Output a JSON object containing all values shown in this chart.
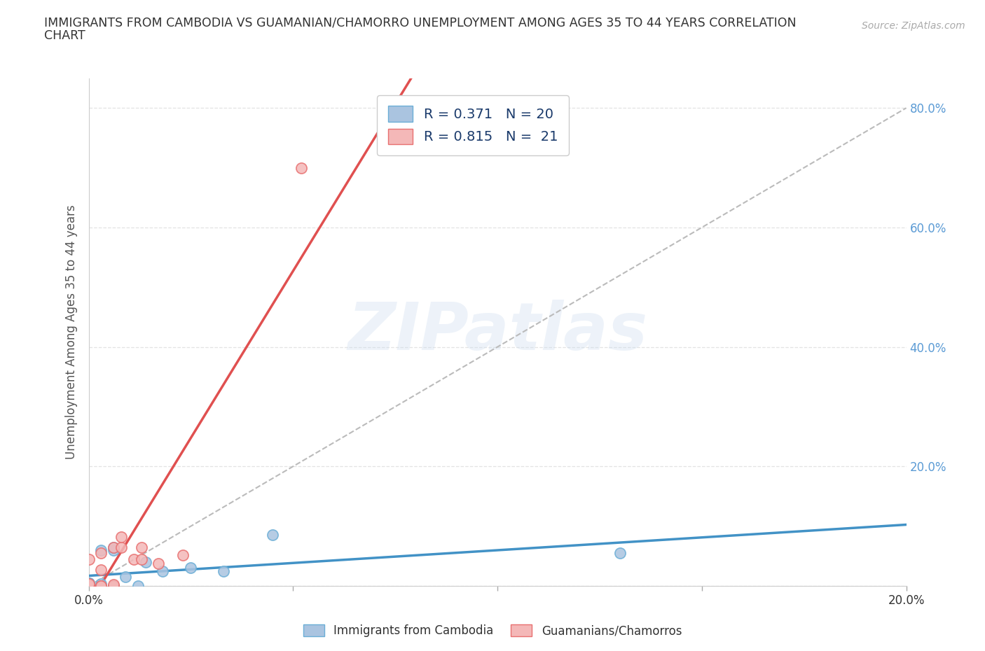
{
  "title_line1": "IMMIGRANTS FROM CAMBODIA VS GUAMANIAN/CHAMORRO UNEMPLOYMENT AMONG AGES 35 TO 44 YEARS CORRELATION",
  "title_line2": "CHART",
  "source": "Source: ZipAtlas.com",
  "ylabel": "Unemployment Among Ages 35 to 44 years",
  "xlim": [
    0.0,
    0.2
  ],
  "ylim": [
    0.0,
    0.85
  ],
  "xticks": [
    0.0,
    0.05,
    0.1,
    0.15,
    0.2
  ],
  "yticks": [
    0.0,
    0.2,
    0.4,
    0.6,
    0.8
  ],
  "watermark_text": "ZIPatlas",
  "cambodia_color": "#aac4e0",
  "cambodia_edge": "#6baed6",
  "guamanian_color": "#f4b8b8",
  "guamanian_edge": "#e87070",
  "cambodia_R": 0.371,
  "cambodia_N": 20,
  "guamanian_R": 0.815,
  "guamanian_N": 21,
  "cambodia_line_color": "#4292c6",
  "guamanian_line_color": "#e05050",
  "diagonal_color": "#bbbbbb",
  "right_axis_color": "#5b9bd5",
  "cambodia_x": [
    0.0,
    0.0,
    0.0,
    0.0,
    0.0,
    0.003,
    0.003,
    0.003,
    0.006,
    0.006,
    0.006,
    0.006,
    0.009,
    0.012,
    0.014,
    0.018,
    0.025,
    0.033,
    0.045,
    0.13
  ],
  "cambodia_y": [
    0.0,
    0.0,
    0.005,
    0.005,
    0.003,
    0.0,
    0.003,
    0.06,
    0.0,
    0.0,
    0.06,
    0.065,
    0.015,
    0.0,
    0.04,
    0.025,
    0.03,
    0.025,
    0.085,
    0.055
  ],
  "guamanian_x": [
    0.0,
    0.0,
    0.0,
    0.0,
    0.0,
    0.0,
    0.003,
    0.003,
    0.003,
    0.003,
    0.006,
    0.006,
    0.006,
    0.008,
    0.008,
    0.011,
    0.013,
    0.013,
    0.017,
    0.023,
    0.052
  ],
  "guamanian_y": [
    0.0,
    0.0,
    0.0,
    0.002,
    0.004,
    0.045,
    0.0,
    0.0,
    0.027,
    0.055,
    0.0,
    0.002,
    0.065,
    0.065,
    0.082,
    0.045,
    0.065,
    0.045,
    0.038,
    0.052,
    0.7
  ],
  "grid_color": "#dddddd",
  "background_color": "#ffffff",
  "legend_label_cambodia": "Immigrants from Cambodia",
  "legend_label_guamanian": "Guamanians/Chamorros"
}
